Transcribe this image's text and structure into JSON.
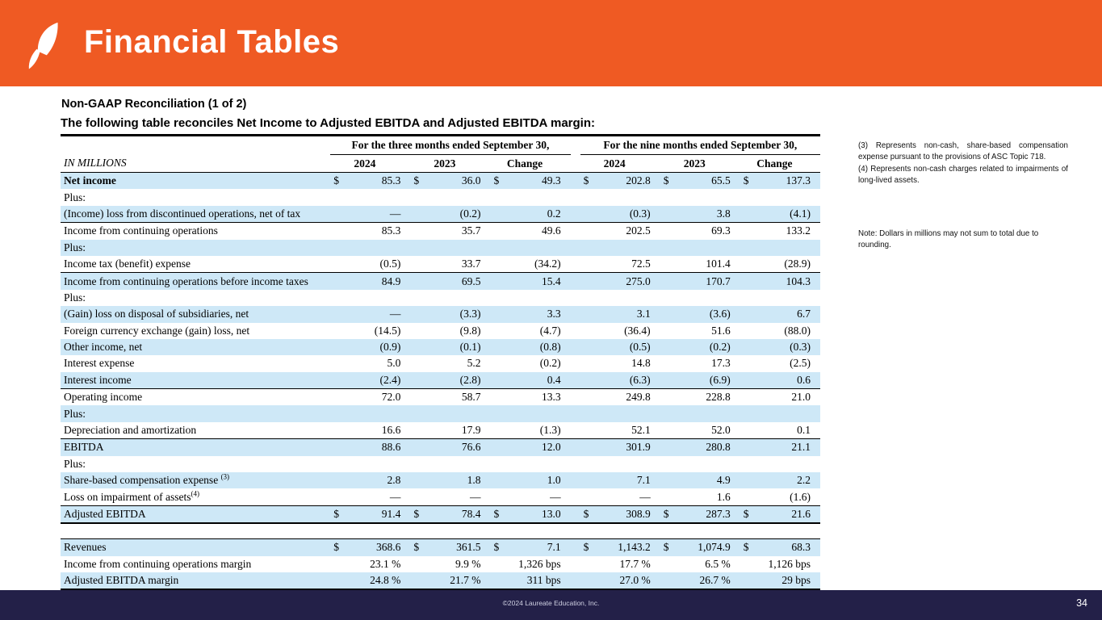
{
  "header": {
    "title": "Financial Tables",
    "logo": "laureate-leaf-icon",
    "accent_color": "#EF5A23"
  },
  "subtitle1": "Non-GAAP  Reconciliation  (1 of 2)",
  "subtitle2": "The following  table  reconciles  Net Income  to  Adjusted  EBITDA and  Adjusted  EBITDA margin:",
  "table": {
    "row_label_header": "IN MILLIONS",
    "groups": [
      "For the three months  ended September 30,",
      "For the nine  months  ended September 30,"
    ],
    "col_headers": [
      "2024",
      "2023",
      "Change"
    ],
    "shade_color": "#CEE8F7",
    "rows": [
      {
        "label": "Net income",
        "bold": true,
        "shade": true,
        "dollar": true,
        "values": [
          "85.3",
          "36.0",
          "49.3",
          "202.8",
          "65.5",
          "137.3"
        ]
      },
      {
        "label": "Plus:",
        "values": [
          "",
          "",
          "",
          "",
          "",
          ""
        ]
      },
      {
        "label": "(Income)  loss from discontinued  operations, net of tax",
        "shade": true,
        "values": [
          "—",
          "(0.2)",
          "0.2",
          "(0.3)",
          "3.8",
          "(4.1)"
        ]
      },
      {
        "label": "Income  from continuing  operations",
        "bt": true,
        "values": [
          "85.3",
          "35.7",
          "49.6",
          "202.5",
          "69.3",
          "133.2"
        ]
      },
      {
        "label": "Plus:",
        "shade": true,
        "values": [
          "",
          "",
          "",
          "",
          "",
          ""
        ]
      },
      {
        "label": "Income  tax  (benefit)  expense",
        "values": [
          "(0.5)",
          "33.7",
          "(34.2)",
          "72.5",
          "101.4",
          "(28.9)"
        ]
      },
      {
        "label": "Income  from continuing  operations before income taxes",
        "shade": true,
        "bt": true,
        "values": [
          "84.9",
          "69.5",
          "15.4",
          "275.0",
          "170.7",
          "104.3"
        ]
      },
      {
        "label": "Plus:",
        "values": [
          "",
          "",
          "",
          "",
          "",
          ""
        ]
      },
      {
        "label": "(Gain)  loss on disposal of subsidiaries, net",
        "shade": true,
        "values": [
          "—",
          "(3.3)",
          "3.3",
          "3.1",
          "(3.6)",
          "6.7"
        ]
      },
      {
        "label": "Foreign currency exchange  (gain) loss, net",
        "values": [
          "(14.5)",
          "(9.8)",
          "(4.7)",
          "(36.4)",
          "51.6",
          "(88.0)"
        ]
      },
      {
        "label": "Other  income, net",
        "shade": true,
        "values": [
          "(0.9)",
          "(0.1)",
          "(0.8)",
          "(0.5)",
          "(0.2)",
          "(0.3)"
        ]
      },
      {
        "label": "Interest  expense",
        "values": [
          "5.0",
          "5.2",
          "(0.2)",
          "14.8",
          "17.3",
          "(2.5)"
        ]
      },
      {
        "label": "Interest  income",
        "shade": true,
        "values": [
          "(2.4)",
          "(2.8)",
          "0.4",
          "(6.3)",
          "(6.9)",
          "0.6"
        ]
      },
      {
        "label": "Operating  income",
        "bt": true,
        "values": [
          "72.0",
          "58.7",
          "13.3",
          "249.8",
          "228.8",
          "21.0"
        ]
      },
      {
        "label": "Plus:",
        "shade": true,
        "values": [
          "",
          "",
          "",
          "",
          "",
          ""
        ]
      },
      {
        "label": "Depreciation and amortization",
        "values": [
          "16.6",
          "17.9",
          "(1.3)",
          "52.1",
          "52.0",
          "0.1"
        ]
      },
      {
        "label": "EBITDA",
        "shade": true,
        "bt": true,
        "values": [
          "88.6",
          "76.6",
          "12.0",
          "301.9",
          "280.8",
          "21.1"
        ]
      },
      {
        "label": "Plus:",
        "values": [
          "",
          "",
          "",
          "",
          "",
          ""
        ]
      },
      {
        "label": "Share-based compensation  expense ",
        "sup": "(3)",
        "shade": true,
        "values": [
          "2.8",
          "1.8",
          "1.0",
          "7.1",
          "4.9",
          "2.2"
        ]
      },
      {
        "label": "Loss on impairment  of assets",
        "sup": "(4)",
        "values": [
          "—",
          "—",
          "—",
          "—",
          "1.6",
          "(1.6)"
        ]
      },
      {
        "label": "Adjusted  EBITDA",
        "shade": true,
        "bt": true,
        "bb": true,
        "dollar": true,
        "values": [
          "91.4",
          "78.4",
          "13.0",
          "308.9",
          "287.3",
          "21.6"
        ]
      },
      {
        "spacer": true
      },
      {
        "label": "Revenues",
        "shade": true,
        "bt": true,
        "dollar": true,
        "values": [
          "368.6",
          "361.5",
          "7.1",
          "1,143.2",
          "1,074.9",
          "68.3"
        ]
      },
      {
        "label": "Income  from continuing  operations margin",
        "values": [
          "23.1  %",
          "9.9  %",
          "1,326 bps",
          "17.7  %",
          "6.5  %",
          "1,126 bps"
        ]
      },
      {
        "label": "Adjusted  EBITDA  margin",
        "shade": true,
        "bb": true,
        "values": [
          "24.8 %",
          "21.7 %",
          "311 bps",
          "27.0 %",
          "26.7 %",
          "29 bps"
        ]
      }
    ]
  },
  "notes": {
    "fn3": "(3)      Represents      non-cash,      share-based compensation expense pursuant to the provisions of ASC Topic 718.",
    "fn4": "(4)  Represents  non-cash  charges  related  to impairments of long-lived  assets.",
    "rounding": "Note:  Dollars in millions may not sum to total due to rounding."
  },
  "footer": {
    "copyright": "©2024 Laureate Education, Inc.",
    "page": "34",
    "bar_color": "#232048"
  }
}
